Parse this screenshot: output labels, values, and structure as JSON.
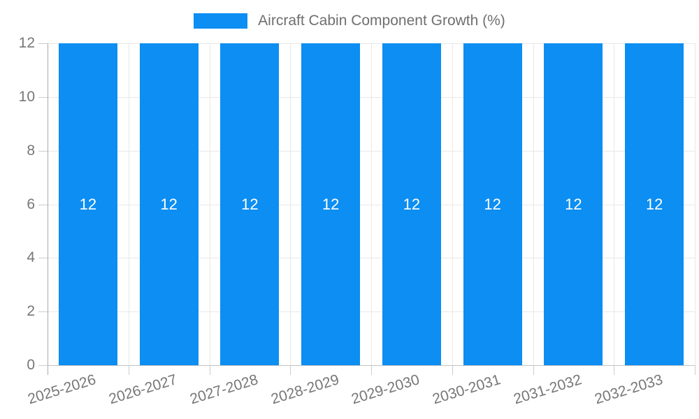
{
  "chart_data": {
    "type": "bar",
    "title": "",
    "legend": {
      "label": "Aircraft Cabin Component Growth (%)",
      "position": "top-center"
    },
    "categories": [
      "2025-2026",
      "2026-2027",
      "2027-2028",
      "2028-2029",
      "2029-2030",
      "2030-2031",
      "2031-2032",
      "2032-2033"
    ],
    "series": [
      {
        "name": "Aircraft Cabin Component Growth (%)",
        "values": [
          12,
          12,
          12,
          12,
          12,
          12,
          12,
          12
        ]
      }
    ],
    "bar_value_labels": [
      "12",
      "12",
      "12",
      "12",
      "12",
      "12",
      "12",
      "12"
    ],
    "xlabel": "",
    "ylabel": "",
    "ylim": [
      0,
      12
    ],
    "yticks": [
      0,
      2,
      4,
      6,
      8,
      10,
      12
    ],
    "ytick_labels": [
      "0",
      "2",
      "4",
      "6",
      "8",
      "10",
      "12"
    ],
    "grid": true,
    "x_label_rotation_deg": -17,
    "colors": {
      "bar": "#0c8ef2",
      "bar_label": "#ffffff",
      "grid": "#e8e8e8",
      "axis_y_line": "#a9a9a9",
      "axis_x_line": "#c3c3c3",
      "tick_mark": "#cccccc",
      "tick_label": "#777777",
      "legend_text": "#6f6f6f",
      "background": "#ffffff"
    }
  }
}
